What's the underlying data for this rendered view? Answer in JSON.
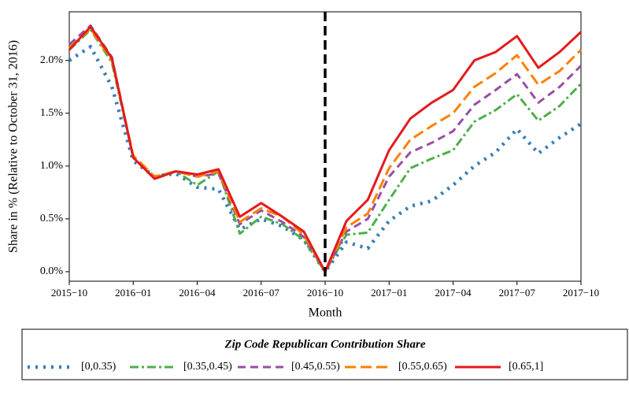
{
  "chart_data": {
    "type": "line",
    "x_label": "Month",
    "y_label": "Share in % (Relative to October 31, 2016)",
    "x": [
      "2015-10",
      "2015-11",
      "2015-12",
      "2016-01",
      "2016-02",
      "2016-03",
      "2016-04",
      "2016-05",
      "2016-06",
      "2016-07",
      "2016-08",
      "2016-09",
      "2016-10",
      "2016-11",
      "2016-12",
      "2017-01",
      "2017-02",
      "2017-03",
      "2017-04",
      "2017-05",
      "2017-06",
      "2017-07",
      "2017-08",
      "2017-09",
      "2017-10"
    ],
    "xticks": [
      {
        "value": "2015-10",
        "label": "2015−10"
      },
      {
        "value": "2016-01",
        "label": "2016−01"
      },
      {
        "value": "2016-04",
        "label": "2016−04"
      },
      {
        "value": "2016-07",
        "label": "2016−07"
      },
      {
        "value": "2016-10",
        "label": "2016−10"
      },
      {
        "value": "2017-01",
        "label": "2017−01"
      },
      {
        "value": "2017-04",
        "label": "2017−04"
      },
      {
        "value": "2017-07",
        "label": "2017−07"
      },
      {
        "value": "2017-10",
        "label": "2017−10"
      }
    ],
    "ylim": [
      -0.09,
      2.46
    ],
    "yticks": [
      {
        "value": 0,
        "label": "0.0%"
      },
      {
        "value": 0.5,
        "label": "0.5%"
      },
      {
        "value": 1,
        "label": "1.0%"
      },
      {
        "value": 1.5,
        "label": "1.5%"
      },
      {
        "value": 2,
        "label": "2.0%"
      }
    ],
    "vline": "2016-10",
    "legend_title": "Zip Code Republican Contribution Share",
    "legend_position": "bottom",
    "series": [
      {
        "name": "[0,0.35)",
        "color": "#377eb8",
        "style": "dotted",
        "values": [
          2.0,
          2.13,
          1.75,
          1.05,
          0.9,
          0.93,
          0.8,
          0.78,
          0.4,
          0.5,
          0.43,
          0.3,
          0.0,
          0.28,
          0.22,
          0.48,
          0.62,
          0.67,
          0.82,
          1.0,
          1.13,
          1.35,
          1.12,
          1.27,
          1.4
        ]
      },
      {
        "name": "[0.35,0.45)",
        "color": "#4daf4a",
        "style": "dashdot",
        "values": [
          2.1,
          2.29,
          1.98,
          1.08,
          0.9,
          0.95,
          0.82,
          0.95,
          0.36,
          0.52,
          0.45,
          0.3,
          0.0,
          0.35,
          0.37,
          0.68,
          0.98,
          1.07,
          1.15,
          1.42,
          1.53,
          1.68,
          1.43,
          1.57,
          1.78
        ]
      },
      {
        "name": "[0.45,0.55)",
        "color": "#984ea3",
        "style": "dashed",
        "values": [
          2.15,
          2.33,
          2.03,
          1.08,
          0.88,
          0.95,
          0.9,
          0.93,
          0.45,
          0.58,
          0.47,
          0.33,
          0.0,
          0.38,
          0.5,
          0.9,
          1.13,
          1.22,
          1.33,
          1.58,
          1.72,
          1.87,
          1.6,
          1.75,
          1.95
        ]
      },
      {
        "name": "[0.55,0.65)",
        "color": "#ff7f00",
        "style": "longdash",
        "values": [
          2.12,
          2.3,
          2.0,
          1.1,
          0.9,
          0.95,
          0.9,
          0.95,
          0.47,
          0.6,
          0.52,
          0.35,
          0.0,
          0.42,
          0.55,
          0.98,
          1.25,
          1.38,
          1.5,
          1.75,
          1.88,
          2.05,
          1.77,
          1.9,
          2.1
        ]
      },
      {
        "name": "[0.65,1]",
        "color": "#e41a1c",
        "style": "solid",
        "values": [
          2.1,
          2.32,
          2.02,
          1.08,
          0.88,
          0.95,
          0.92,
          0.97,
          0.52,
          0.65,
          0.52,
          0.38,
          0.0,
          0.48,
          0.68,
          1.15,
          1.45,
          1.6,
          1.72,
          2.0,
          2.08,
          2.23,
          1.93,
          2.08,
          2.27
        ]
      }
    ]
  }
}
